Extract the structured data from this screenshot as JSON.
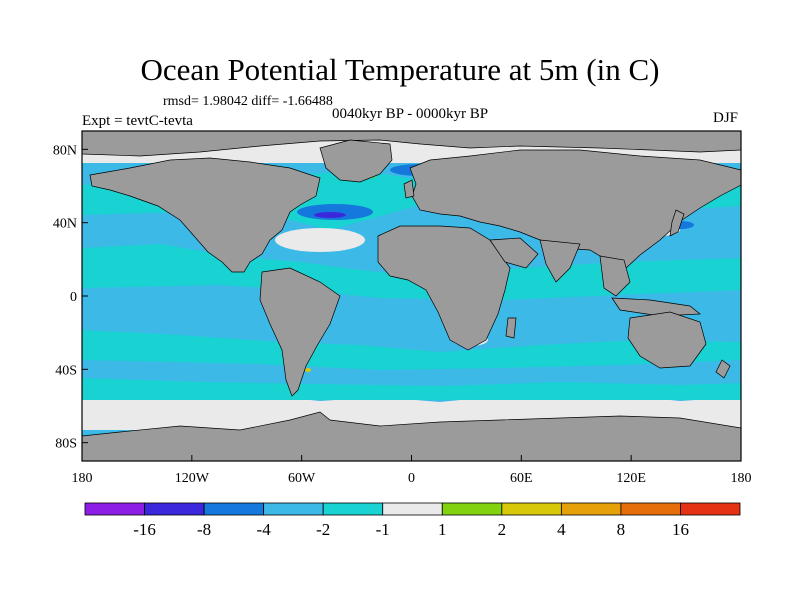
{
  "title": "Ocean Potential Temperature at 5m (in C)",
  "stats": "rmsd= 1.98042 diff= -1.66488",
  "experiment": "Expt = tevtC-tevta",
  "period": "0040kyr BP - 0000kyr BP",
  "season": "DJF",
  "map": {
    "lon_range": [
      -180,
      180
    ],
    "lat_range": [
      -90,
      90
    ],
    "x_ticks": [
      {
        "lon": -180,
        "label": "180"
      },
      {
        "lon": -120,
        "label": "120W"
      },
      {
        "lon": -60,
        "label": "60W"
      },
      {
        "lon": 0,
        "label": "0"
      },
      {
        "lon": 60,
        "label": "60E"
      },
      {
        "lon": 120,
        "label": "120E"
      },
      {
        "lon": 180,
        "label": "180"
      }
    ],
    "y_ticks": [
      {
        "lat": 80,
        "label": "80N"
      },
      {
        "lat": 40,
        "label": "40N"
      },
      {
        "lat": 0,
        "label": "0"
      },
      {
        "lat": -40,
        "label": "40S"
      },
      {
        "lat": -80,
        "label": "80S"
      }
    ],
    "land_color": "#9b9b9b",
    "ocean_base_color": "#3cb9e6"
  },
  "colorbar": {
    "levels": [
      "-16",
      "-8",
      "-4",
      "-2",
      "-1",
      "1",
      "2",
      "4",
      "8",
      "16"
    ],
    "colors": [
      "#8c1ee6",
      "#3c28dc",
      "#1478dc",
      "#3cb9e6",
      "#19d2d2",
      "#eaeaea",
      "#82d20f",
      "#d7c80a",
      "#e6a00a",
      "#e66e0a",
      "#e63214"
    ]
  }
}
